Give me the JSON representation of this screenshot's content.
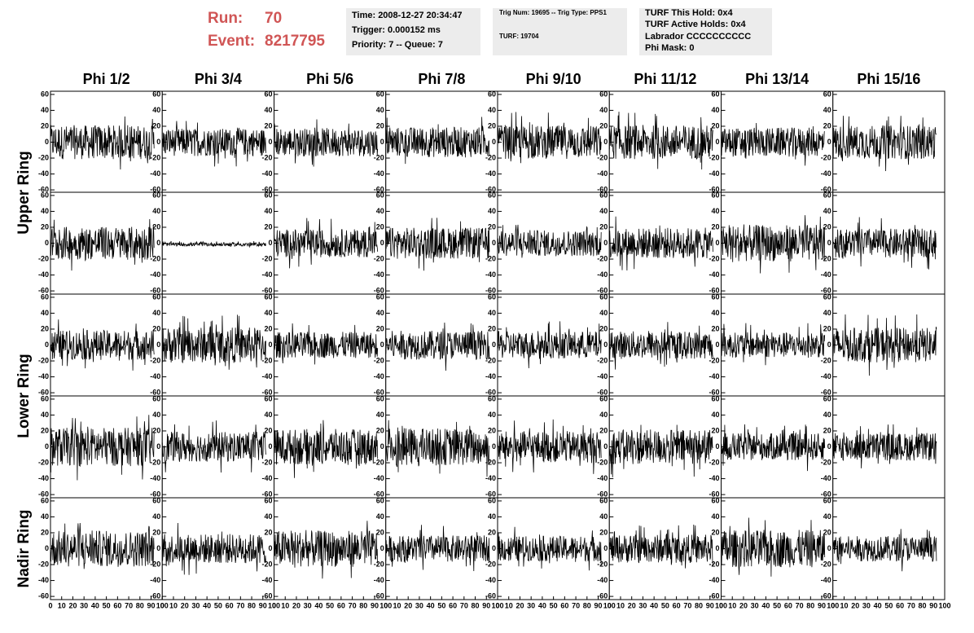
{
  "header": {
    "run_label": "Run:",
    "run": "70",
    "event_label": "Event:",
    "event": "8217795"
  },
  "time_box": {
    "lines": [
      "Time: 2008-12-27 20:34:47",
      "Trigger: 0.000152 ms",
      "Priority: 7 -- Queue: 7"
    ]
  },
  "trig_box": {
    "lines": [
      "Trig Num: 19695 -- Trig Type: PPS1",
      "TURF: 19704"
    ]
  },
  "turf_box": {
    "lines": [
      "TURF This Hold: 0x4",
      "TURF Active Holds: 0x4",
      "Labrador CCCCCCCCCC",
      "Phi Mask: 0"
    ]
  },
  "columns": [
    "Phi 1/2",
    "Phi 3/4",
    "Phi 5/6",
    "Phi 7/8",
    "Phi 9/10",
    "Phi 11/12",
    "Phi 13/14",
    "Phi 15/16"
  ],
  "rings": [
    "Upper Ring",
    "Lower Ring",
    "Nadir Ring"
  ],
  "axes": {
    "xlim": [
      0,
      100
    ],
    "xticks": [
      0,
      10,
      20,
      30,
      40,
      50,
      60,
      70,
      80,
      90,
      100
    ],
    "ylim": [
      -64,
      64
    ],
    "yticks": [
      -60,
      -40,
      -20,
      0,
      20,
      40,
      60
    ]
  }
}
